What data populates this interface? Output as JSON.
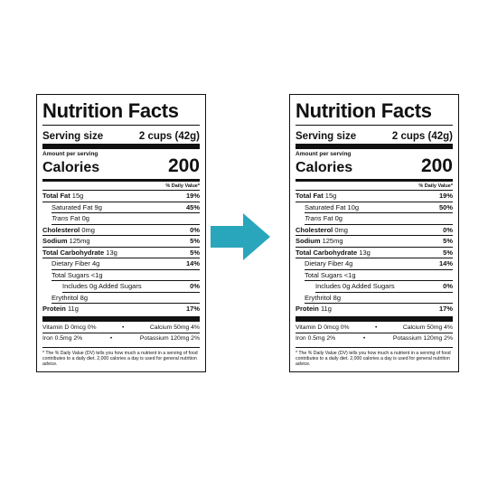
{
  "arrow_color": "#2aa6bc",
  "labels": [
    {
      "title": "Nutrition Facts",
      "serving_label": "Serving size",
      "serving_value": "2 cups (42g)",
      "amount_per_serving": "Amount per serving",
      "calories_label": "Calories",
      "calories_value": "200",
      "dv_header": "% Daily Value*",
      "total_fat": {
        "name": "Total Fat",
        "amount": "15g",
        "pct": "19%"
      },
      "saturated_fat": {
        "name": "Saturated Fat",
        "amount": "9g",
        "pct": "45%"
      },
      "trans_fat": {
        "name": "Trans",
        "rest": "Fat 0g"
      },
      "cholesterol": {
        "name": "Cholesterol",
        "amount": "0mg",
        "pct": "0%"
      },
      "sodium": {
        "name": "Sodium",
        "amount": "125mg",
        "pct": "5%"
      },
      "carbs": {
        "name": "Total Carbohydrate",
        "amount": "13g",
        "pct": "5%"
      },
      "fiber": {
        "name": "Dietary Fiber 4g",
        "pct": "14%"
      },
      "sugars": {
        "name": "Total Sugars <1g"
      },
      "added_sugars": {
        "name": "Includes 0g Added Sugars",
        "pct": "0%"
      },
      "erythritol": {
        "name": "Erythritol 8g"
      },
      "protein": {
        "name": "Protein",
        "amount": "11g",
        "pct": "17%"
      },
      "vitamin_d": "Vitamin D 0mcg 0%",
      "calcium": "Calcium 50mg 4%",
      "iron": "Iron 0.5mg 2%",
      "potassium": "Potassium 120mg 2%",
      "bullet": "•",
      "footnote": "* The % Daily Value (DV) tells you how much a nutrient in a serving of food contributes to a daily diet. 2,000 calories a day is used for general nutrition advice."
    },
    {
      "title": "Nutrition Facts",
      "serving_label": "Serving size",
      "serving_value": "2 cups (42g)",
      "amount_per_serving": "Amount per serving",
      "calories_label": "Calories",
      "calories_value": "200",
      "dv_header": "% Daily Value*",
      "total_fat": {
        "name": "Total Fat",
        "amount": "15g",
        "pct": "19%"
      },
      "saturated_fat": {
        "name": "Saturated Fat",
        "amount": "10g",
        "pct": "50%"
      },
      "trans_fat": {
        "name": "Trans",
        "rest": "Fat 0g"
      },
      "cholesterol": {
        "name": "Cholesterol",
        "amount": "0mg",
        "pct": "0%"
      },
      "sodium": {
        "name": "Sodium",
        "amount": "125mg",
        "pct": "5%"
      },
      "carbs": {
        "name": "Total Carbohydrate",
        "amount": "13g",
        "pct": "5%"
      },
      "fiber": {
        "name": "Dietary Fiber 4g",
        "pct": "14%"
      },
      "sugars": {
        "name": "Total Sugars <1g"
      },
      "added_sugars": {
        "name": "Includes 0g Added Sugars",
        "pct": "0%"
      },
      "erythritol": {
        "name": "Erythritol 8g"
      },
      "protein": {
        "name": "Protein",
        "amount": "11g",
        "pct": "17%"
      },
      "vitamin_d": "Vitamin D 0mcg 0%",
      "calcium": "Calcium 50mg 4%",
      "iron": "Iron 0.5mg 2%",
      "potassium": "Potassium 120mg 2%",
      "bullet": "•",
      "footnote": "* The % Daily Value (DV) tells you how much a nutrient in a serving of food contributes to a daily diet. 2,000 calories a day is used for general nutrition advice."
    }
  ]
}
